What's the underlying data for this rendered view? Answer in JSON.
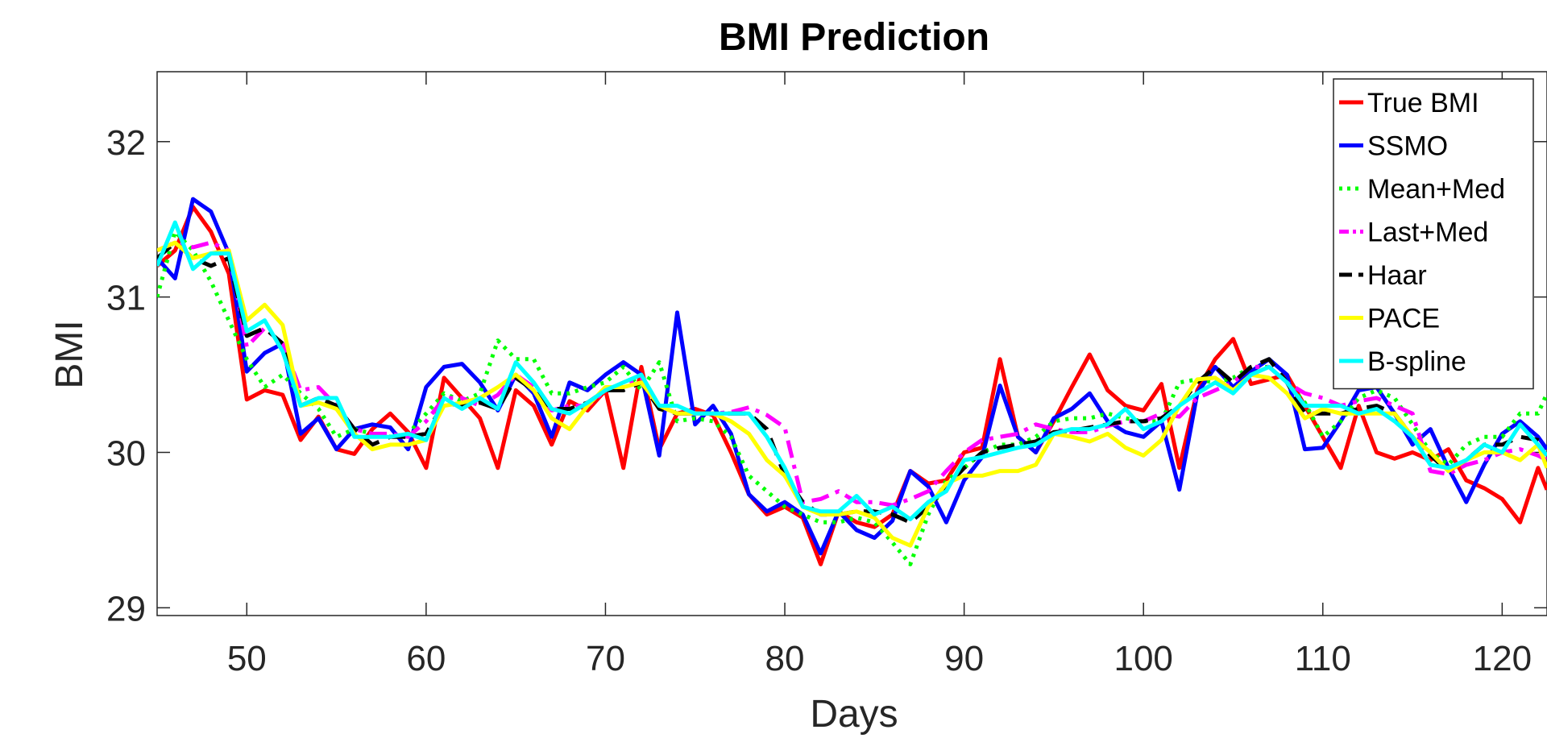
{
  "chart_data": {
    "type": "line",
    "title": "BMI Prediction",
    "xlabel": "Days",
    "ylabel": "BMI",
    "xlim": [
      45,
      122.5
    ],
    "ylim": [
      28.95,
      32.45
    ],
    "xticks": [
      50,
      60,
      70,
      80,
      90,
      100,
      110,
      120
    ],
    "yticks": [
      29,
      30,
      31,
      32
    ],
    "legend_position": "top-right",
    "grid": false,
    "x": [
      45,
      46,
      47,
      48,
      49,
      50,
      51,
      52,
      53,
      54,
      55,
      56,
      57,
      58,
      59,
      60,
      61,
      62,
      63,
      64,
      65,
      66,
      67,
      68,
      69,
      70,
      71,
      72,
      73,
      74,
      75,
      76,
      77,
      78,
      79,
      80,
      81,
      82,
      83,
      84,
      85,
      86,
      87,
      88,
      89,
      90,
      91,
      92,
      93,
      94,
      95,
      96,
      97,
      98,
      99,
      100,
      101,
      102,
      103,
      104,
      105,
      106,
      107,
      108,
      109,
      110,
      111,
      112,
      113,
      114,
      115,
      116,
      117,
      118,
      119,
      120,
      121,
      122,
      122.5
    ],
    "series": [
      {
        "name": "True BMI",
        "color": "#ff0000",
        "dash": "solid",
        "values": [
          31.2,
          31.3,
          31.58,
          31.42,
          31.15,
          30.34,
          30.4,
          30.37,
          30.08,
          30.23,
          30.02,
          29.99,
          30.15,
          30.25,
          30.13,
          29.9,
          30.48,
          30.35,
          30.22,
          29.9,
          30.4,
          30.3,
          30.05,
          30.33,
          30.27,
          30.4,
          29.9,
          30.55,
          30.02,
          30.25,
          30.28,
          30.24,
          30.0,
          29.73,
          29.6,
          29.65,
          29.58,
          29.28,
          29.62,
          29.55,
          29.52,
          29.6,
          29.88,
          29.8,
          29.82,
          30.0,
          30.03,
          30.6,
          30.1,
          30.0,
          30.2,
          30.42,
          30.63,
          30.4,
          30.3,
          30.27,
          30.44,
          29.9,
          30.4,
          30.6,
          30.73,
          30.44,
          30.47,
          30.5,
          30.3,
          30.1,
          29.9,
          30.3,
          30.0,
          29.96,
          30.0,
          29.95,
          30.02,
          29.82,
          29.77,
          29.7,
          29.55,
          29.9,
          29.76
        ]
      },
      {
        "name": "SSMO",
        "color": "#0000ff",
        "dash": "solid",
        "values": [
          31.25,
          31.12,
          31.63,
          31.55,
          31.28,
          30.52,
          30.64,
          30.7,
          30.12,
          30.22,
          30.02,
          30.15,
          30.18,
          30.16,
          30.02,
          30.42,
          30.55,
          30.57,
          30.45,
          30.27,
          30.5,
          30.38,
          30.1,
          30.45,
          30.4,
          30.5,
          30.58,
          30.5,
          29.98,
          30.9,
          30.18,
          30.3,
          30.12,
          29.73,
          29.62,
          29.68,
          29.6,
          29.35,
          29.62,
          29.5,
          29.45,
          29.56,
          29.88,
          29.78,
          29.55,
          29.82,
          29.97,
          30.43,
          30.1,
          30.0,
          30.22,
          30.28,
          30.38,
          30.2,
          30.13,
          30.1,
          30.2,
          29.76,
          30.38,
          30.55,
          30.42,
          30.52,
          30.6,
          30.5,
          30.02,
          30.03,
          30.2,
          30.4,
          30.42,
          30.25,
          30.05,
          30.15,
          29.9,
          29.68,
          29.92,
          30.12,
          30.2,
          30.1,
          30.02
        ]
      },
      {
        "name": "Mean+Med",
        "color": "#00ff00",
        "dash": "dotted",
        "values": [
          31.0,
          31.42,
          31.3,
          31.1,
          30.85,
          30.6,
          30.42,
          30.5,
          30.38,
          30.28,
          30.1,
          30.15,
          30.12,
          30.1,
          30.12,
          30.25,
          30.38,
          30.33,
          30.38,
          30.72,
          30.6,
          30.6,
          30.38,
          30.38,
          30.42,
          30.45,
          30.55,
          30.4,
          30.58,
          30.2,
          30.22,
          30.2,
          30.1,
          29.85,
          29.75,
          29.65,
          29.6,
          29.55,
          29.55,
          29.58,
          29.55,
          29.42,
          29.28,
          29.6,
          29.82,
          29.9,
          30.0,
          30.05,
          30.05,
          30.1,
          30.2,
          30.22,
          30.22,
          30.25,
          30.22,
          30.2,
          30.2,
          30.45,
          30.47,
          30.45,
          30.48,
          30.55,
          30.55,
          30.45,
          30.32,
          30.1,
          30.2,
          30.35,
          30.4,
          30.35,
          30.18,
          30.0,
          29.92,
          30.05,
          30.1,
          30.1,
          30.25,
          30.25,
          30.38
        ]
      },
      {
        "name": "Last+Med",
        "color": "#ff00ff",
        "dash": "dashdot",
        "values": [
          31.3,
          31.35,
          31.32,
          31.35,
          31.3,
          30.68,
          30.8,
          30.7,
          30.4,
          30.42,
          30.3,
          30.15,
          30.12,
          30.12,
          30.1,
          30.2,
          30.35,
          30.35,
          30.3,
          30.37,
          30.5,
          30.42,
          30.27,
          30.3,
          30.3,
          30.4,
          30.42,
          30.48,
          30.3,
          30.25,
          30.25,
          30.25,
          30.26,
          30.29,
          30.24,
          30.16,
          29.68,
          29.7,
          29.75,
          29.68,
          29.68,
          29.66,
          29.7,
          29.75,
          29.88,
          30.0,
          30.08,
          30.1,
          30.12,
          30.18,
          30.15,
          30.13,
          30.13,
          30.17,
          30.2,
          30.2,
          30.25,
          30.23,
          30.35,
          30.4,
          30.45,
          30.55,
          30.55,
          30.45,
          30.38,
          30.35,
          30.3,
          30.33,
          30.35,
          30.3,
          30.25,
          29.88,
          29.86,
          29.92,
          29.95,
          30.0,
          30.02,
          29.98,
          29.95
        ]
      },
      {
        "name": "Haar",
        "color": "#000000",
        "dash": "dashed",
        "values": [
          31.25,
          31.35,
          31.25,
          31.2,
          31.25,
          30.75,
          30.8,
          30.7,
          30.3,
          30.35,
          30.3,
          30.15,
          30.05,
          30.1,
          30.1,
          30.12,
          30.32,
          30.3,
          30.32,
          30.28,
          30.48,
          30.4,
          30.28,
          30.28,
          30.32,
          30.4,
          30.4,
          30.45,
          30.28,
          30.25,
          30.25,
          30.25,
          30.25,
          30.25,
          30.15,
          29.85,
          29.68,
          29.6,
          29.6,
          29.62,
          29.62,
          29.6,
          29.55,
          29.65,
          29.78,
          29.9,
          30.0,
          30.03,
          30.05,
          30.07,
          30.13,
          30.14,
          30.16,
          30.18,
          30.2,
          30.2,
          30.22,
          30.3,
          30.45,
          30.55,
          30.45,
          30.55,
          30.6,
          30.45,
          30.25,
          30.25,
          30.25,
          30.28,
          30.3,
          30.25,
          30.1,
          29.98,
          29.88,
          29.95,
          30.05,
          30.05,
          30.1,
          30.08,
          30.05
        ]
      },
      {
        "name": "PACE",
        "color": "#ffff00",
        "dash": "solid",
        "values": [
          31.3,
          31.35,
          31.25,
          31.28,
          31.3,
          30.85,
          30.95,
          30.82,
          30.3,
          30.32,
          30.28,
          30.12,
          30.02,
          30.05,
          30.05,
          30.08,
          30.3,
          30.32,
          30.35,
          30.42,
          30.5,
          30.4,
          30.22,
          30.15,
          30.3,
          30.42,
          30.42,
          30.45,
          30.3,
          30.25,
          30.25,
          30.25,
          30.2,
          30.12,
          29.95,
          29.85,
          29.65,
          29.6,
          29.6,
          29.62,
          29.58,
          29.45,
          29.4,
          29.65,
          29.8,
          29.85,
          29.85,
          29.88,
          29.88,
          29.92,
          30.12,
          30.1,
          30.07,
          30.12,
          30.03,
          29.98,
          30.08,
          30.3,
          30.47,
          30.48,
          30.4,
          30.5,
          30.48,
          30.38,
          30.22,
          30.28,
          30.25,
          30.25,
          30.25,
          30.25,
          30.1,
          30.0,
          29.88,
          29.95,
          30.0,
          30.0,
          29.95,
          30.05,
          29.9
        ]
      },
      {
        "name": "B-spline",
        "color": "#00ffff",
        "dash": "solid",
        "values": [
          31.2,
          31.48,
          31.18,
          31.28,
          31.28,
          30.78,
          30.85,
          30.65,
          30.3,
          30.35,
          30.35,
          30.1,
          30.1,
          30.1,
          30.12,
          30.08,
          30.35,
          30.28,
          30.35,
          30.28,
          30.58,
          30.45,
          30.28,
          30.25,
          30.32,
          30.4,
          30.45,
          30.5,
          30.3,
          30.3,
          30.25,
          30.25,
          30.25,
          30.25,
          30.1,
          29.9,
          29.65,
          29.62,
          29.62,
          29.72,
          29.6,
          29.65,
          29.57,
          29.68,
          29.75,
          29.95,
          29.97,
          30.0,
          30.03,
          30.05,
          30.12,
          30.15,
          30.15,
          30.18,
          30.28,
          30.15,
          30.2,
          30.3,
          30.38,
          30.45,
          30.38,
          30.5,
          30.55,
          30.45,
          30.3,
          30.3,
          30.3,
          30.25,
          30.28,
          30.2,
          30.1,
          29.92,
          29.9,
          29.95,
          30.05,
          30.0,
          30.18,
          30.05,
          29.98
        ]
      }
    ]
  }
}
